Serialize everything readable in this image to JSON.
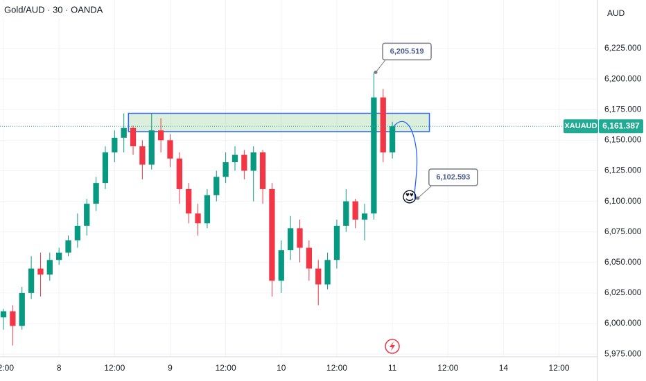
{
  "chart_data": {
    "type": "candlestick",
    "title": "Gold/AUD · 30 · OANDA",
    "currency": "AUD",
    "symbol": "XAUAUD",
    "last_price": {
      "value": 6161.387,
      "label": "6,161.387"
    },
    "up_color": "#089981",
    "down_color": "#f23645",
    "x": [
      0,
      2,
      4,
      6,
      8,
      10,
      12,
      14,
      16,
      18,
      20,
      22,
      24,
      26,
      28,
      30,
      32,
      34,
      36,
      38,
      40,
      42,
      44,
      46,
      48,
      50,
      52,
      54,
      56,
      58,
      60,
      62,
      64,
      66,
      68,
      70,
      72,
      74,
      76,
      78,
      80,
      82,
      84
    ],
    "open": [
      6005,
      6010,
      5998,
      6025,
      6045,
      6040,
      6052,
      6058,
      6068,
      6080,
      6098,
      6115,
      6140,
      6152,
      6160,
      6145,
      6130,
      6158,
      6150,
      6135,
      6110,
      6090,
      6082,
      6105,
      6120,
      6132,
      6138,
      6125,
      6140,
      6110,
      6035,
      6060,
      6078,
      6062,
      6045,
      6032,
      6052,
      6080,
      6100,
      6085,
      6090,
      6185,
      6140
    ],
    "high": [
      6012,
      6015,
      6030,
      6055,
      6058,
      6058,
      6062,
      6072,
      6090,
      6102,
      6120,
      6145,
      6158,
      6172,
      6162,
      6150,
      6172,
      6168,
      6155,
      6140,
      6115,
      6098,
      6110,
      6125,
      6140,
      6145,
      6142,
      6145,
      6142,
      6115,
      6068,
      6088,
      6085,
      6068,
      6052,
      6058,
      6085,
      6110,
      6102,
      6098,
      6205.5,
      6192,
      6165
    ],
    "low": [
      5995,
      5982,
      5995,
      6020,
      6022,
      6035,
      6048,
      6055,
      6062,
      6072,
      6092,
      6110,
      6132,
      6140,
      6138,
      6118,
      6126,
      6140,
      6128,
      6098,
      6082,
      6072,
      6078,
      6100,
      6115,
      6125,
      6118,
      6100,
      6098,
      6022,
      6025,
      6052,
      6050,
      6035,
      6015,
      6028,
      6045,
      6075,
      6078,
      6068,
      6085,
      6132,
      6135
    ],
    "close": [
      6010,
      5998,
      6025,
      6045,
      6040,
      6052,
      6058,
      6068,
      6080,
      6098,
      6115,
      6140,
      6152,
      6160,
      6145,
      6130,
      6158,
      6150,
      6135,
      6110,
      6090,
      6082,
      6105,
      6120,
      6132,
      6138,
      6125,
      6140,
      6110,
      6035,
      6060,
      6078,
      6062,
      6045,
      6032,
      6052,
      6080,
      6100,
      6085,
      6090,
      6185,
      6140,
      6161.387
    ],
    "zone": {
      "x": [
        27,
        92
      ],
      "y": [
        6157,
        6172
      ]
    },
    "annotations": [
      {
        "x": 80.4,
        "value": 6205.519,
        "label": "6,205.519"
      },
      {
        "x": 89.5,
        "value": 6102.593,
        "label": "6,102.593"
      }
    ],
    "emoji": "😍",
    "xlim": [
      -0.75,
      128.3
    ],
    "ylim": [
      5972.8,
      6264.7
    ],
    "xticks": [
      {
        "value": 0,
        "label": "12:00"
      },
      {
        "value": 12,
        "label": "8"
      },
      {
        "value": 24,
        "label": "12:00"
      },
      {
        "value": 36,
        "label": "9"
      },
      {
        "value": 48,
        "label": "12:00"
      },
      {
        "value": 60,
        "label": "10"
      },
      {
        "value": 72,
        "label": "12:00"
      },
      {
        "value": 84,
        "label": "11"
      },
      {
        "value": 96,
        "label": "12:00"
      },
      {
        "value": 108,
        "label": "14"
      },
      {
        "value": 120,
        "label": "12:00"
      }
    ],
    "yticks": [
      {
        "value": 5975,
        "label": "5,975.000"
      },
      {
        "value": 6000,
        "label": "6,000.000"
      },
      {
        "value": 6025,
        "label": "6,025.000"
      },
      {
        "value": 6050,
        "label": "6,050.000"
      },
      {
        "value": 6075,
        "label": "6,075.000"
      },
      {
        "value": 6100,
        "label": "6,100.000"
      },
      {
        "value": 6125,
        "label": "6,125.000"
      },
      {
        "value": 6150,
        "label": "6,150.000"
      },
      {
        "value": 6175,
        "label": "6,175.000"
      },
      {
        "value": 6200,
        "label": "6,200.000"
      },
      {
        "value": 6225,
        "label": "6,225.000"
      }
    ],
    "grid": true
  }
}
